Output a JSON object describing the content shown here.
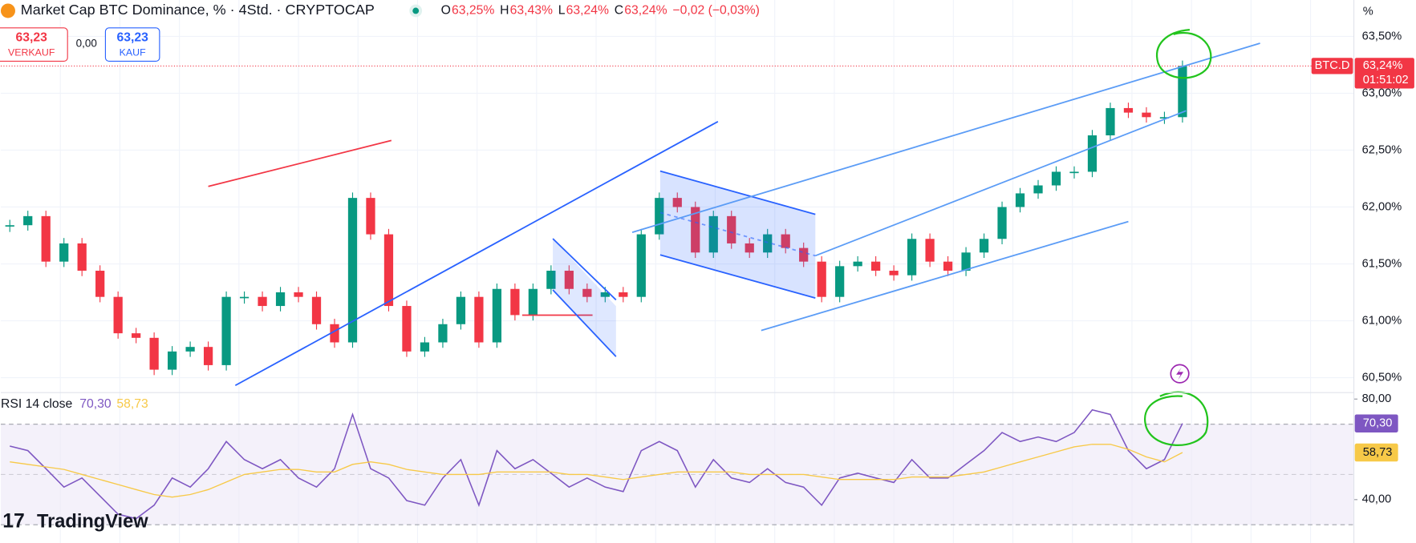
{
  "ui": {
    "title": "Market Cap BTC Dominance, % · 4Std. · CRYPTOCAP",
    "ohlc": [
      {
        "k": "O",
        "v": "63,25%"
      },
      {
        "k": "H",
        "v": "63,43%"
      },
      {
        "k": "L",
        "v": "63,24%"
      },
      {
        "k": "C",
        "v": "63,24%"
      }
    ],
    "change": "−0,02 (−0,03%)",
    "sell": {
      "price": "63,23",
      "label": "VERKAUF"
    },
    "spread": "0,00",
    "buy": {
      "price": "63,23",
      "label": "KAUF"
    },
    "axis_unit": "%",
    "symbol": "BTC.D",
    "last_price": "63,24%",
    "countdown": "01:51:02",
    "logo": "TradingView"
  },
  "chart_data": [
    {
      "type": "candlestick",
      "categories": [
        null,
        null,
        null,
        null,
        null,
        null,
        null,
        null,
        null,
        null,
        null,
        null,
        null,
        null,
        null,
        null,
        null,
        null,
        null,
        null,
        null,
        null,
        null,
        null,
        null,
        null,
        null,
        null,
        null,
        null,
        null,
        null,
        null,
        null,
        null,
        null,
        null,
        null,
        null,
        null,
        null,
        null,
        null,
        null,
        null,
        null,
        null,
        null,
        null,
        null,
        null,
        null,
        null,
        null,
        null,
        null,
        null,
        null,
        null,
        null,
        null,
        null,
        null,
        null,
        null,
        null
      ],
      "values": [
        61.84,
        61.92,
        61.52,
        61.68,
        61.44,
        61.21,
        60.89,
        60.85,
        60.57,
        60.73,
        60.77,
        60.61,
        61.21,
        61.21,
        61.13,
        61.25,
        61.21,
        60.97,
        60.81,
        62.08,
        61.76,
        61.13,
        60.73,
        60.81,
        60.97,
        61.21,
        60.81,
        61.28,
        61.05,
        61.28,
        61.44,
        61.28,
        61.21,
        61.25,
        61.21,
        61.76,
        62.08,
        62.0,
        61.6,
        61.92,
        61.68,
        61.6,
        61.76,
        61.64,
        61.52,
        61.21,
        61.48,
        61.52,
        61.44,
        61.4,
        61.72,
        61.52,
        61.44,
        61.6,
        61.72,
        62.0,
        62.12,
        62.19,
        62.31,
        62.31,
        62.63,
        62.87,
        62.83,
        62.79,
        62.79,
        63.24
      ],
      "up_color": "#089981",
      "down_color": "#f23645",
      "ylim": [
        60.4,
        63.82
      ],
      "yticks": [
        {
          "value": 63.5,
          "label": "63,50%"
        },
        {
          "value": 63.0,
          "label": "63,00%"
        },
        {
          "value": 62.5,
          "label": "62,50%"
        },
        {
          "value": 62.0,
          "label": "62,00%"
        },
        {
          "value": 61.5,
          "label": "61,50%"
        },
        {
          "value": 61.0,
          "label": "61,00%"
        },
        {
          "value": 60.5,
          "label": "60,50%"
        }
      ],
      "grid": true
    },
    {
      "type": "line",
      "title": "RSI 14 close",
      "categories": [
        null,
        null,
        null,
        null,
        null,
        null,
        null,
        null,
        null,
        null,
        null,
        null,
        null,
        null,
        null,
        null,
        null,
        null,
        null,
        null,
        null,
        null,
        null,
        null,
        null,
        null,
        null,
        null,
        null,
        null,
        null,
        null,
        null,
        null,
        null,
        null,
        null,
        null,
        null,
        null,
        null,
        null,
        null,
        null,
        null,
        null,
        null,
        null,
        null,
        null,
        null,
        null,
        null,
        null,
        null,
        null,
        null,
        null,
        null,
        null,
        null,
        null,
        null,
        null,
        null,
        null
      ],
      "series": [
        {
          "color": "#7e57c2",
          "last_label": "70,30",
          "values": [
            61.3,
            59.5,
            52.3,
            45.0,
            48.6,
            41.4,
            34.2,
            32.4,
            37.8,
            48.6,
            45.0,
            52.3,
            63.1,
            55.9,
            52.3,
            55.9,
            48.6,
            45.0,
            52.3,
            73.9,
            52.3,
            48.6,
            39.6,
            37.8,
            48.6,
            55.9,
            37.8,
            59.5,
            52.3,
            55.9,
            50.5,
            45.0,
            48.6,
            45.0,
            43.2,
            59.5,
            63.1,
            59.5,
            45.0,
            55.9,
            48.6,
            46.8,
            52.3,
            46.8,
            45.0,
            37.8,
            48.6,
            50.5,
            48.6,
            46.8,
            55.9,
            48.6,
            48.6,
            54.1,
            59.5,
            66.7,
            63.1,
            64.9,
            63.1,
            66.7,
            75.7,
            73.9,
            59.5,
            52.3,
            55.9,
            70.3
          ]
        },
        {
          "color": "#f7c948",
          "last_label": "58,73",
          "values": [
            55,
            54,
            53,
            52,
            50,
            48,
            46,
            44,
            42,
            41,
            42,
            44,
            47,
            50,
            51,
            52,
            52,
            51,
            51,
            54,
            55,
            54,
            52,
            51,
            50,
            50,
            50,
            51,
            51,
            51,
            51,
            50,
            50,
            49,
            48,
            49,
            50,
            51,
            51,
            51,
            51,
            50,
            50,
            50,
            50,
            49,
            48,
            48,
            48,
            48,
            49,
            49,
            49,
            50,
            51,
            53,
            55,
            57,
            59,
            61,
            62,
            62,
            60,
            57,
            55,
            58.73
          ]
        }
      ],
      "levels": [
        70,
        50,
        30
      ],
      "band_color": "#ede7f6",
      "ylim": [
        27.4,
        82.2
      ],
      "yticks": [
        {
          "value": 80,
          "label": "80,00"
        },
        {
          "value": 40,
          "label": "40,00"
        }
      ]
    }
  ]
}
